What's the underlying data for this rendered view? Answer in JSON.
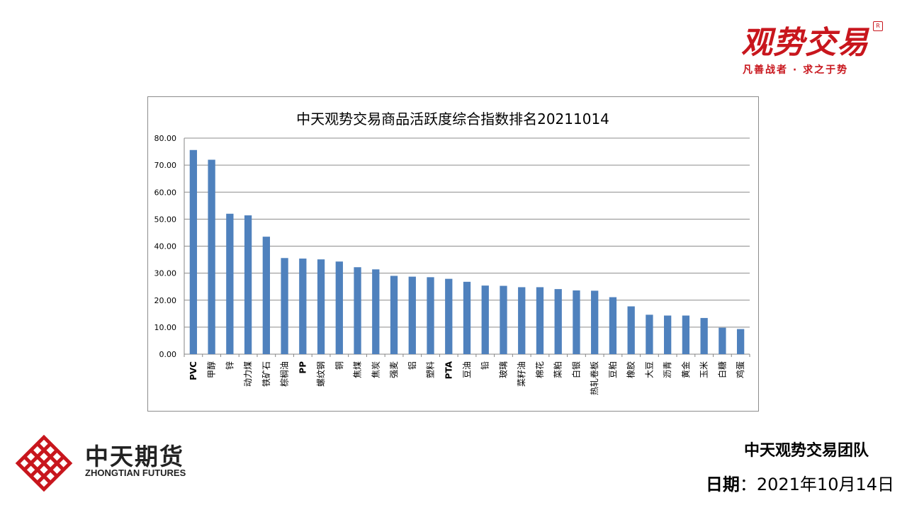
{
  "brand": {
    "title": "观势交易",
    "slogan": "凡善战者 · 求之于势",
    "mark": "R",
    "color": "#c8161d"
  },
  "company": {
    "name_cn": "中天期货",
    "name_en": "ZHONGTIAN FUTURES",
    "logo_color": "#c8161d"
  },
  "footer": {
    "team": "中天观势交易团队",
    "date_label": "日期",
    "date_sep": "：",
    "date_value": "2021年10月14日"
  },
  "chart_data": {
    "type": "bar",
    "title": "中天观势交易商品活跃度综合指数排名20211014",
    "xlabel": "",
    "ylabel": "",
    "ylim": [
      0,
      80
    ],
    "yticks": [
      "0.00",
      "10.00",
      "20.00",
      "30.00",
      "40.00",
      "50.00",
      "60.00",
      "70.00",
      "80.00"
    ],
    "grid": true,
    "legend": "none",
    "bar_color": "#4f81bd",
    "categories": [
      "PVC",
      "甲醇",
      "锌",
      "动力煤",
      "铁矿石",
      "棕榈油",
      "PP",
      "螺纹钢",
      "铜",
      "焦煤",
      "焦炭",
      "强麦",
      "铝",
      "塑料",
      "PTA",
      "豆油",
      "铅",
      "玻璃",
      "菜籽油",
      "棉花",
      "菜粕",
      "白银",
      "热轧卷板",
      "豆粕",
      "橡胶",
      "大豆",
      "沥青",
      "黄金",
      "玉米",
      "白糖",
      "鸡蛋"
    ],
    "values": [
      75.6,
      72.0,
      52.0,
      51.4,
      43.5,
      35.6,
      35.4,
      35.1,
      34.3,
      32.2,
      31.4,
      29.0,
      28.7,
      28.5,
      27.9,
      26.8,
      25.4,
      25.3,
      24.8,
      24.8,
      24.1,
      23.6,
      23.5,
      21.1,
      17.7,
      14.6,
      14.3,
      14.3,
      13.4,
      9.8,
      9.3
    ]
  }
}
